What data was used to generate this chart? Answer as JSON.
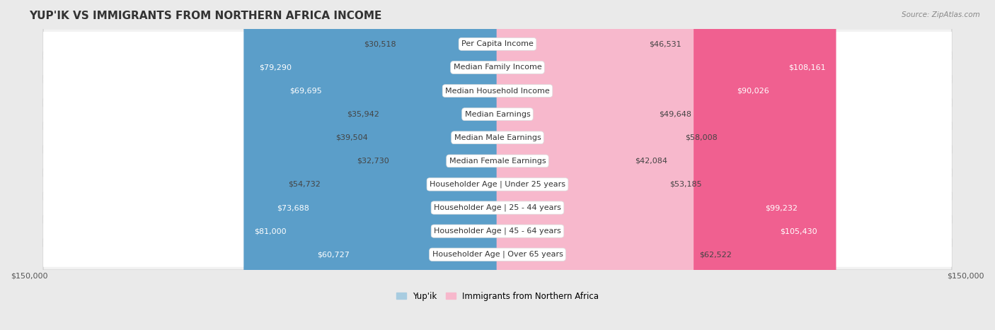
{
  "title": "YUP'IK VS IMMIGRANTS FROM NORTHERN AFRICA INCOME",
  "source": "Source: ZipAtlas.com",
  "categories": [
    "Per Capita Income",
    "Median Family Income",
    "Median Household Income",
    "Median Earnings",
    "Median Male Earnings",
    "Median Female Earnings",
    "Householder Age | Under 25 years",
    "Householder Age | 25 - 44 years",
    "Householder Age | 45 - 64 years",
    "Householder Age | Over 65 years"
  ],
  "yupik_values": [
    30518,
    79290,
    69695,
    35942,
    39504,
    32730,
    54732,
    73688,
    81000,
    60727
  ],
  "immigrant_values": [
    46531,
    108161,
    90026,
    49648,
    58008,
    42084,
    53185,
    99232,
    105430,
    62522
  ],
  "yupik_labels": [
    "$30,518",
    "$79,290",
    "$69,695",
    "$35,942",
    "$39,504",
    "$32,730",
    "$54,732",
    "$73,688",
    "$81,000",
    "$60,727"
  ],
  "immigrant_labels": [
    "$46,531",
    "$108,161",
    "$90,026",
    "$49,648",
    "$58,008",
    "$42,084",
    "$53,185",
    "$99,232",
    "$105,430",
    "$62,522"
  ],
  "yupik_color_light": "#a8cce0",
  "yupik_color_dark": "#5b9ec9",
  "immigrant_color_light": "#f7b8cc",
  "immigrant_color_dark": "#f06090",
  "max_value": 150000,
  "background_color": "#eaeaea",
  "row_bg_color": "#ffffff",
  "outer_bg_color": "#e8e8e8",
  "legend_yupik": "Yup'ik",
  "legend_immigrant": "Immigrants from Northern Africa",
  "title_fontsize": 11,
  "label_fontsize": 8,
  "category_fontsize": 8,
  "white_label_threshold_yupik": 60000,
  "white_label_threshold_immigrant": 80000
}
